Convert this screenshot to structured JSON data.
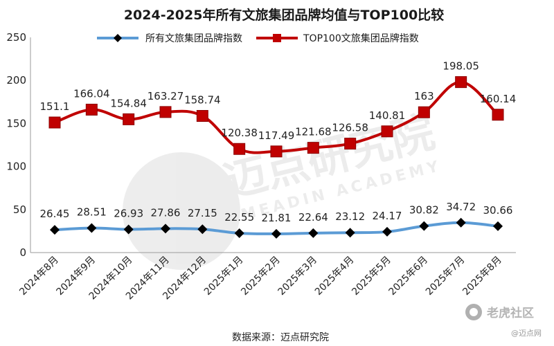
{
  "chart_data": {
    "type": "line",
    "title": "2024-2025年所有文旅集团品牌均值与TOP100比较",
    "categories": [
      "2024年8月",
      "2024年9月",
      "2024年10月",
      "2024年11月",
      "2024年12月",
      "2025年1月",
      "2025年2月",
      "2025年3月",
      "2025年4月",
      "2025年5月",
      "2025年6月",
      "2025年7月",
      "2025年8月"
    ],
    "ylim": [
      0,
      250
    ],
    "yticks": [
      0,
      50,
      100,
      150,
      200,
      250
    ],
    "grid": false,
    "legend_position": "top",
    "series": [
      {
        "name": "所有文旅集团品牌指数",
        "values": [
          26.45,
          28.51,
          26.93,
          27.86,
          27.15,
          22.55,
          21.81,
          22.64,
          23.12,
          24.17,
          30.82,
          34.72,
          30.66
        ],
        "labels": [
          "26.45",
          "28.51",
          "26.93",
          "27.86",
          "27.15",
          "22.55",
          "21.81",
          "22.64",
          "23.12",
          "24.17",
          "30.82",
          "34.72",
          "30.66"
        ],
        "line_color": "#5b9bd5",
        "marker_color": "#000000",
        "marker": "diamond"
      },
      {
        "name": "TOP100文旅集团品牌指数",
        "values": [
          151.1,
          166.04,
          154.84,
          163.27,
          158.74,
          120.38,
          117.49,
          121.68,
          126.58,
          140.81,
          163,
          198.05,
          160.14
        ],
        "labels": [
          "151.1",
          "166.04",
          "154.84",
          "163.27",
          "158.74",
          "120.38",
          "117.49",
          "121.68",
          "126.58",
          "140.81",
          "163",
          "198.05",
          "160.14"
        ],
        "line_color": "#c00000",
        "marker_color": "#c00000",
        "marker": "square"
      }
    ]
  },
  "source_text": "数据来源：迈点研究院",
  "watermark": {
    "main": "迈点研究院",
    "sub": "MEADIN ACADEMY",
    "corner": "老虎社区",
    "corner_sub": "@迈点网"
  }
}
